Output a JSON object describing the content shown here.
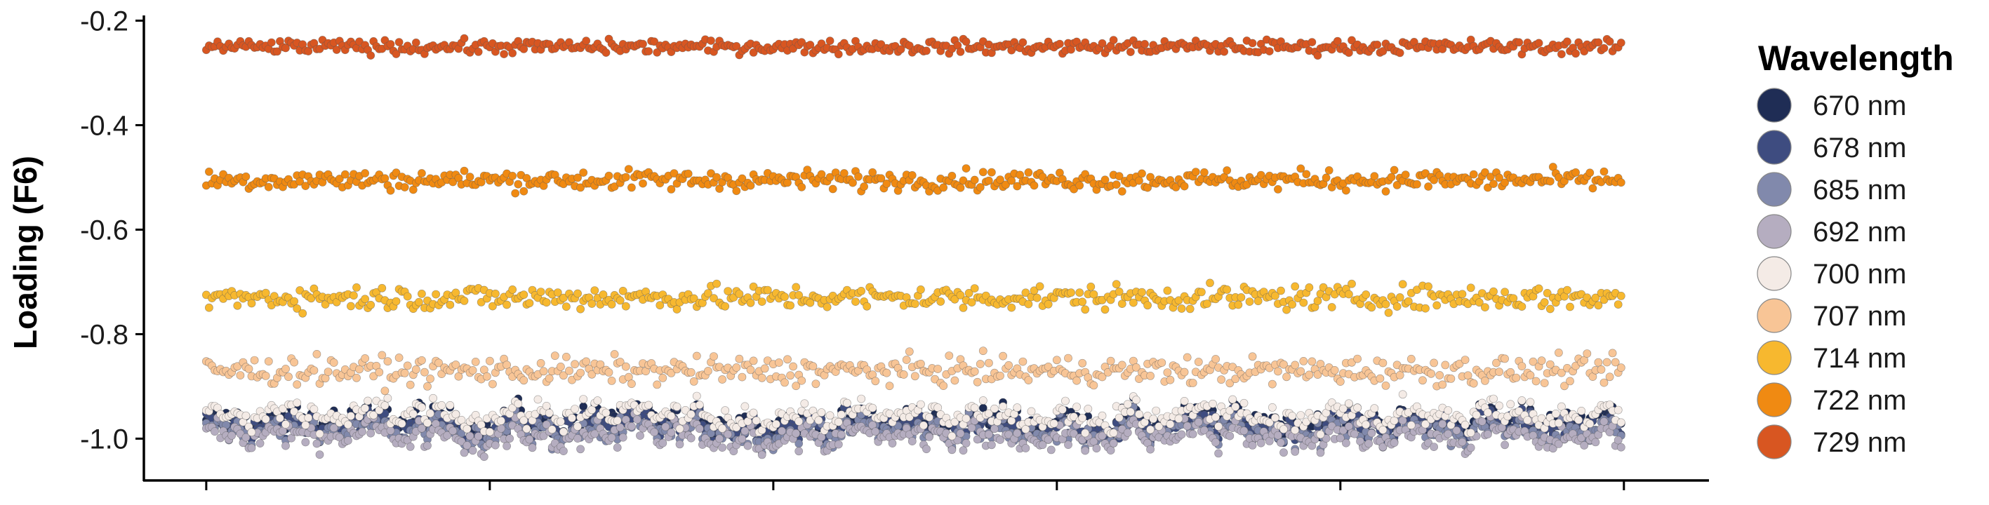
{
  "chart_data": {
    "type": "scatter",
    "title": "",
    "xlabel": "",
    "ylabel": "Loading (F6)",
    "ylim": [
      -1.08,
      -0.19
    ],
    "xlim": [
      -22,
      530
    ],
    "x_ticks": [
      0,
      100,
      200,
      300,
      400,
      500
    ],
    "x_tick_labels_shown": false,
    "y_ticks": [
      -1.0,
      -0.8,
      -0.6,
      -0.4,
      -0.2
    ],
    "y_tick_labels": [
      "-1.0",
      "-0.8",
      "-0.6",
      "-0.4",
      "-0.2"
    ],
    "grid": false,
    "legend": {
      "title": "Wavelength",
      "position": "right"
    },
    "n_points_per_series": 500,
    "series": [
      {
        "name": "670 nm",
        "color": "#1f2d55",
        "approx_mean": -0.965,
        "noise": 0.02
      },
      {
        "name": "678 nm",
        "color": "#3e4c80",
        "approx_mean": -0.975,
        "noise": 0.02
      },
      {
        "name": "685 nm",
        "color": "#8189ac",
        "approx_mean": -0.985,
        "noise": 0.02
      },
      {
        "name": "692 nm",
        "color": "#b5adc0",
        "approx_mean": -0.995,
        "noise": 0.022
      },
      {
        "name": "700 nm",
        "color": "#f4ebe6",
        "approx_mean": -0.955,
        "noise": 0.02
      },
      {
        "name": "707 nm",
        "color": "#f8c596",
        "approx_mean": -0.87,
        "noise": 0.018
      },
      {
        "name": "714 nm",
        "color": "#f7b82f",
        "approx_mean": -0.73,
        "noise": 0.016
      },
      {
        "name": "722 nm",
        "color": "#f08a12",
        "approx_mean": -0.505,
        "noise": 0.013
      },
      {
        "name": "729 nm",
        "color": "#d85621",
        "approx_mean": -0.25,
        "noise": 0.009
      }
    ]
  }
}
